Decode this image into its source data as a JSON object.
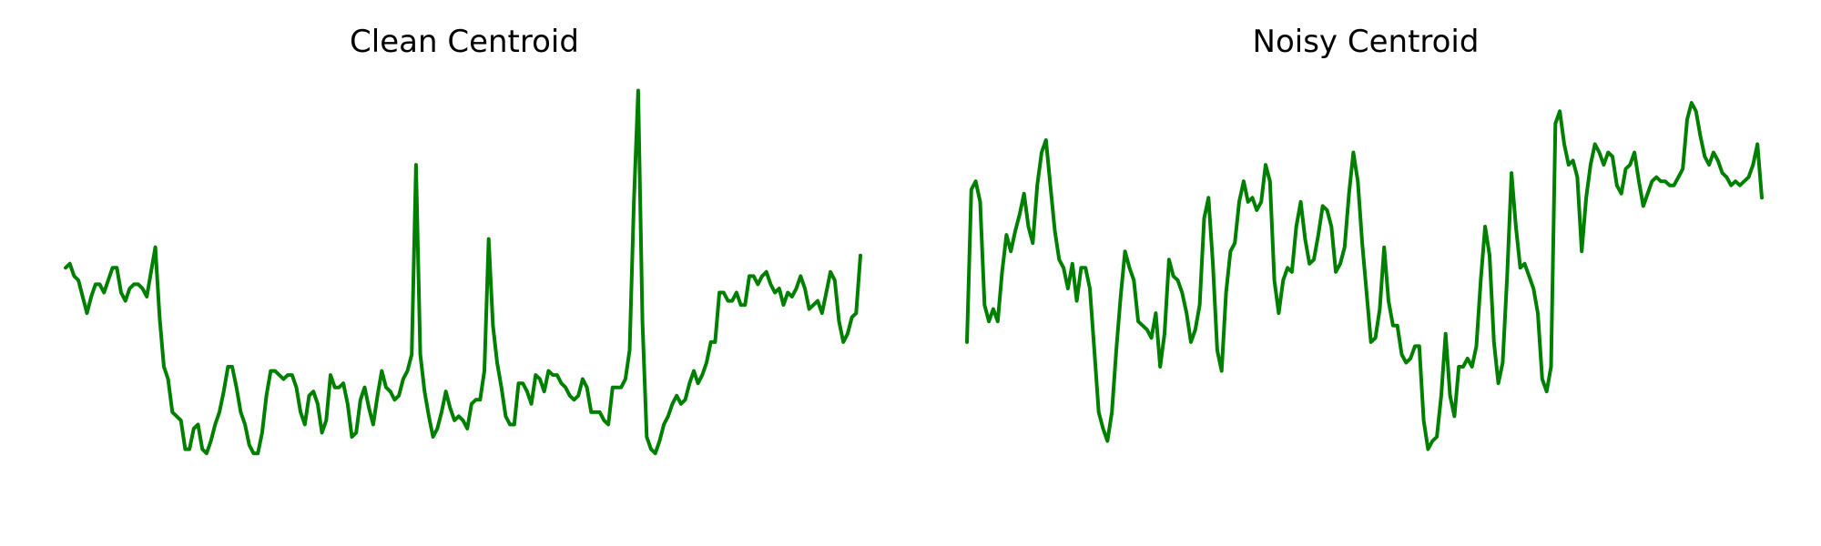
{
  "chart_data": [
    {
      "type": "line",
      "title": "Clean Centroid",
      "xlabel": "",
      "ylabel": "",
      "grid": false,
      "axes_visible": false,
      "legend": "none",
      "ylim": [
        0,
        1
      ],
      "series": [
        {
          "color": "#008000",
          "values": [
            0.56,
            0.57,
            0.54,
            0.53,
            0.49,
            0.45,
            0.49,
            0.52,
            0.52,
            0.5,
            0.53,
            0.56,
            0.56,
            0.5,
            0.48,
            0.51,
            0.52,
            0.52,
            0.51,
            0.49,
            0.55,
            0.61,
            0.44,
            0.32,
            0.29,
            0.21,
            0.2,
            0.19,
            0.12,
            0.12,
            0.17,
            0.18,
            0.12,
            0.11,
            0.14,
            0.18,
            0.21,
            0.26,
            0.32,
            0.32,
            0.27,
            0.21,
            0.18,
            0.13,
            0.11,
            0.11,
            0.16,
            0.25,
            0.31,
            0.31,
            0.3,
            0.29,
            0.3,
            0.3,
            0.27,
            0.21,
            0.18,
            0.25,
            0.26,
            0.23,
            0.16,
            0.19,
            0.3,
            0.27,
            0.27,
            0.28,
            0.23,
            0.15,
            0.16,
            0.24,
            0.27,
            0.22,
            0.18,
            0.25,
            0.31,
            0.27,
            0.26,
            0.24,
            0.25,
            0.29,
            0.31,
            0.35,
            0.81,
            0.35,
            0.26,
            0.2,
            0.15,
            0.17,
            0.21,
            0.26,
            0.22,
            0.19,
            0.2,
            0.19,
            0.17,
            0.23,
            0.24,
            0.24,
            0.31,
            0.63,
            0.42,
            0.33,
            0.27,
            0.2,
            0.18,
            0.18,
            0.28,
            0.28,
            0.26,
            0.23,
            0.3,
            0.29,
            0.26,
            0.31,
            0.3,
            0.3,
            0.28,
            0.27,
            0.25,
            0.24,
            0.25,
            0.29,
            0.27,
            0.21,
            0.21,
            0.21,
            0.19,
            0.18,
            0.27,
            0.27,
            0.27,
            0.29,
            0.36,
            0.72,
            0.99,
            0.43,
            0.15,
            0.12,
            0.11,
            0.14,
            0.18,
            0.2,
            0.23,
            0.25,
            0.23,
            0.24,
            0.28,
            0.31,
            0.28,
            0.3,
            0.33,
            0.38,
            0.38,
            0.5,
            0.5,
            0.48,
            0.48,
            0.5,
            0.47,
            0.47,
            0.54,
            0.54,
            0.52,
            0.54,
            0.55,
            0.52,
            0.5,
            0.51,
            0.47,
            0.5,
            0.49,
            0.51,
            0.54,
            0.51,
            0.46,
            0.47,
            0.48,
            0.45,
            0.5,
            0.55,
            0.53,
            0.43,
            0.38,
            0.4,
            0.44,
            0.45,
            0.59
          ]
        }
      ]
    },
    {
      "type": "line",
      "title": "Noisy Centroid",
      "xlabel": "",
      "ylabel": "",
      "grid": false,
      "axes_visible": false,
      "legend": "none",
      "ylim": [
        0,
        1
      ],
      "series": [
        {
          "color": "#008000",
          "values": [
            0.38,
            0.75,
            0.77,
            0.72,
            0.47,
            0.43,
            0.46,
            0.43,
            0.55,
            0.64,
            0.6,
            0.65,
            0.69,
            0.74,
            0.66,
            0.62,
            0.76,
            0.84,
            0.87,
            0.76,
            0.65,
            0.58,
            0.56,
            0.51,
            0.57,
            0.48,
            0.56,
            0.56,
            0.51,
            0.36,
            0.21,
            0.17,
            0.14,
            0.21,
            0.36,
            0.49,
            0.6,
            0.56,
            0.53,
            0.43,
            0.42,
            0.41,
            0.39,
            0.45,
            0.32,
            0.4,
            0.58,
            0.54,
            0.53,
            0.5,
            0.45,
            0.38,
            0.41,
            0.47,
            0.68,
            0.73,
            0.57,
            0.36,
            0.31,
            0.5,
            0.6,
            0.62,
            0.72,
            0.77,
            0.72,
            0.73,
            0.7,
            0.72,
            0.81,
            0.77,
            0.53,
            0.45,
            0.53,
            0.56,
            0.55,
            0.66,
            0.72,
            0.63,
            0.57,
            0.58,
            0.64,
            0.71,
            0.7,
            0.66,
            0.55,
            0.57,
            0.61,
            0.74,
            0.84,
            0.77,
            0.62,
            0.5,
            0.38,
            0.39,
            0.46,
            0.61,
            0.48,
            0.42,
            0.42,
            0.35,
            0.33,
            0.34,
            0.37,
            0.37,
            0.19,
            0.12,
            0.14,
            0.15,
            0.25,
            0.4,
            0.25,
            0.2,
            0.32,
            0.32,
            0.34,
            0.32,
            0.37,
            0.53,
            0.66,
            0.59,
            0.38,
            0.28,
            0.33,
            0.54,
            0.79,
            0.66,
            0.56,
            0.57,
            0.54,
            0.51,
            0.45,
            0.29,
            0.26,
            0.32,
            0.91,
            0.94,
            0.86,
            0.81,
            0.82,
            0.78,
            0.6,
            0.73,
            0.81,
            0.86,
            0.84,
            0.81,
            0.84,
            0.83,
            0.76,
            0.74,
            0.8,
            0.81,
            0.84,
            0.77,
            0.71,
            0.74,
            0.77,
            0.78,
            0.77,
            0.77,
            0.76,
            0.76,
            0.78,
            0.8,
            0.92,
            0.96,
            0.94,
            0.88,
            0.83,
            0.81,
            0.84,
            0.82,
            0.79,
            0.78,
            0.76,
            0.77,
            0.76,
            0.77,
            0.78,
            0.81,
            0.86,
            0.73
          ]
        }
      ]
    }
  ]
}
